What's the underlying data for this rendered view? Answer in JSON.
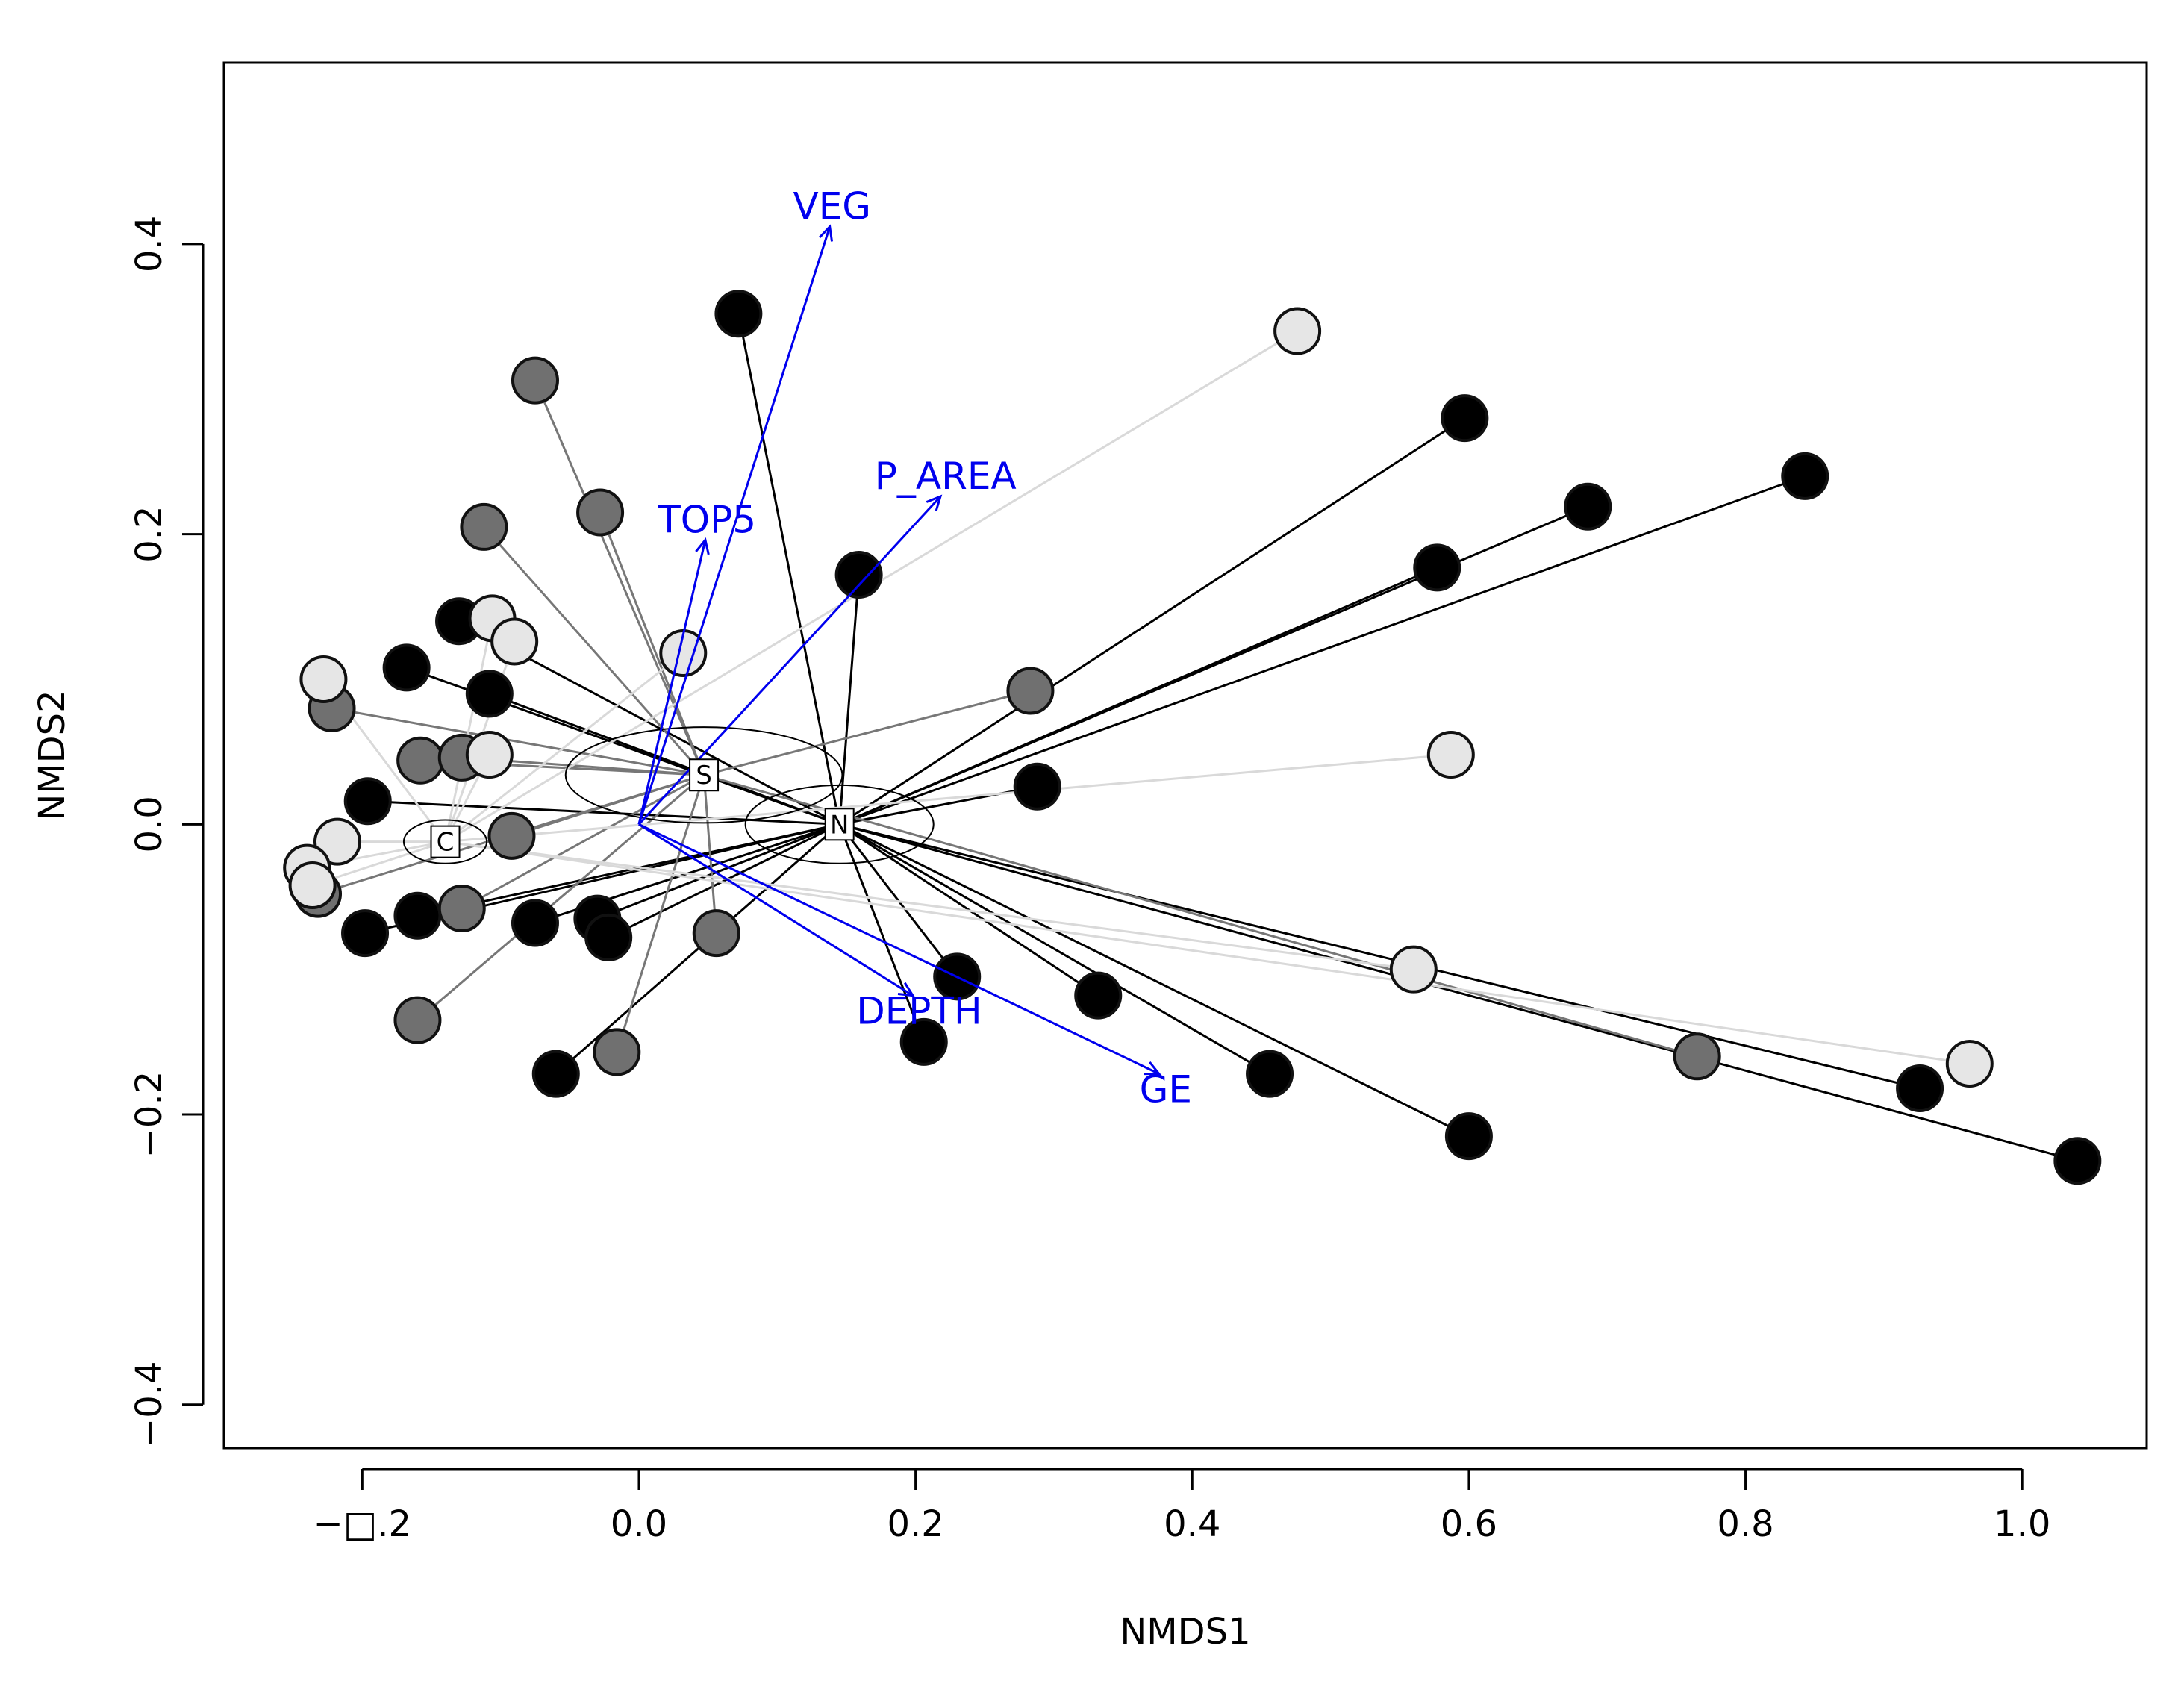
{
  "chart_data": {
    "type": "scatter",
    "xlabel": "NMDS1",
    "ylabel": "NMDS2",
    "xlim": [
      -0.3,
      1.09
    ],
    "ylim": [
      -0.43,
      0.525
    ],
    "x_ticks": [
      -0.2,
      0.0,
      0.2,
      0.4,
      0.6,
      0.8,
      1.0
    ],
    "x_tick_labels": [
      "−□.2",
      "0.0",
      "0.2",
      "0.4",
      "0.6",
      "0.8",
      "1.0"
    ],
    "y_ticks": [
      -0.4,
      -0.2,
      0.0,
      0.2,
      0.4
    ],
    "y_tick_labels": [
      "−0.4",
      "−0.2",
      "0.0",
      "0.2",
      "0.4"
    ],
    "colors": {
      "N": "#000000",
      "S": "#707070",
      "C": "#e6e6e6",
      "vector": "#0000ee",
      "spider_S": "#777777",
      "spider_C": "#d9d9d9"
    },
    "groups": [
      {
        "name": "N",
        "centroid": [
          0.145,
          0.0
        ],
        "ellipse": {
          "rx": 0.068,
          "ry": 0.027
        }
      },
      {
        "name": "S",
        "centroid": [
          0.047,
          0.034
        ],
        "ellipse": {
          "rx": 0.1,
          "ry": 0.033
        }
      },
      {
        "name": "C",
        "centroid": [
          -0.14,
          -0.012
        ],
        "ellipse": {
          "rx": 0.03,
          "ry": 0.015
        }
      }
    ],
    "points": [
      {
        "x": 0.072,
        "y": 0.352,
        "group": "N"
      },
      {
        "x": 0.597,
        "y": 0.28,
        "group": "N"
      },
      {
        "x": 0.686,
        "y": 0.219,
        "group": "N"
      },
      {
        "x": 0.843,
        "y": 0.24,
        "group": "N"
      },
      {
        "x": 0.577,
        "y": 0.177,
        "group": "N"
      },
      {
        "x": 0.159,
        "y": 0.172,
        "group": "N"
      },
      {
        "x": 0.288,
        "y": 0.026,
        "group": "N"
      },
      {
        "x": 0.23,
        "y": -0.105,
        "group": "N"
      },
      {
        "x": 0.332,
        "y": -0.118,
        "group": "N"
      },
      {
        "x": 0.206,
        "y": -0.15,
        "group": "N"
      },
      {
        "x": 0.456,
        "y": -0.172,
        "group": "N"
      },
      {
        "x": 0.6,
        "y": -0.215,
        "group": "N"
      },
      {
        "x": 0.926,
        "y": -0.182,
        "group": "N"
      },
      {
        "x": 1.04,
        "y": -0.232,
        "group": "N"
      },
      {
        "x": -0.13,
        "y": 0.14,
        "group": "N"
      },
      {
        "x": -0.168,
        "y": 0.108,
        "group": "N"
      },
      {
        "x": -0.108,
        "y": 0.09,
        "group": "N"
      },
      {
        "x": -0.196,
        "y": 0.016,
        "group": "N"
      },
      {
        "x": -0.16,
        "y": -0.063,
        "group": "N"
      },
      {
        "x": -0.198,
        "y": -0.075,
        "group": "N"
      },
      {
        "x": -0.075,
        "y": -0.068,
        "group": "N"
      },
      {
        "x": -0.03,
        "y": -0.065,
        "group": "N"
      },
      {
        "x": -0.022,
        "y": -0.078,
        "group": "N"
      },
      {
        "x": -0.06,
        "y": -0.172,
        "group": "N"
      },
      {
        "x": -0.075,
        "y": 0.306,
        "group": "S"
      },
      {
        "x": -0.112,
        "y": 0.205,
        "group": "S"
      },
      {
        "x": -0.028,
        "y": 0.215,
        "group": "S"
      },
      {
        "x": 0.283,
        "y": 0.092,
        "group": "S"
      },
      {
        "x": -0.222,
        "y": 0.08,
        "group": "S"
      },
      {
        "x": -0.158,
        "y": 0.044,
        "group": "S"
      },
      {
        "x": -0.128,
        "y": 0.046,
        "group": "S"
      },
      {
        "x": -0.092,
        "y": -0.008,
        "group": "S"
      },
      {
        "x": -0.128,
        "y": -0.058,
        "group": "S"
      },
      {
        "x": 0.056,
        "y": -0.075,
        "group": "S"
      },
      {
        "x": -0.016,
        "y": -0.157,
        "group": "S"
      },
      {
        "x": -0.16,
        "y": -0.135,
        "group": "S"
      },
      {
        "x": -0.232,
        "y": -0.048,
        "group": "S"
      },
      {
        "x": 0.765,
        "y": -0.16,
        "group": "S"
      },
      {
        "x": 0.476,
        "y": 0.34,
        "group": "C"
      },
      {
        "x": 0.032,
        "y": 0.118,
        "group": "C"
      },
      {
        "x": -0.106,
        "y": 0.142,
        "group": "C"
      },
      {
        "x": -0.09,
        "y": 0.126,
        "group": "C"
      },
      {
        "x": -0.228,
        "y": 0.1,
        "group": "C"
      },
      {
        "x": -0.108,
        "y": 0.048,
        "group": "C"
      },
      {
        "x": 0.587,
        "y": 0.048,
        "group": "C"
      },
      {
        "x": -0.218,
        "y": -0.012,
        "group": "C"
      },
      {
        "x": -0.24,
        "y": -0.03,
        "group": "C"
      },
      {
        "x": -0.236,
        "y": -0.042,
        "group": "C"
      },
      {
        "x": 0.56,
        "y": -0.1,
        "group": "C"
      },
      {
        "x": 0.962,
        "y": -0.165,
        "group": "C"
      }
    ],
    "vectors": [
      {
        "label": "VEG",
        "x": 0.138,
        "y": 0.412
      },
      {
        "label": "P_AREA",
        "x": 0.218,
        "y": 0.226
      },
      {
        "label": "TOP5",
        "x": 0.048,
        "y": 0.196
      },
      {
        "label": "DEPTH",
        "x": 0.198,
        "y": -0.118
      },
      {
        "label": "GE",
        "x": 0.376,
        "y": -0.172
      }
    ]
  }
}
